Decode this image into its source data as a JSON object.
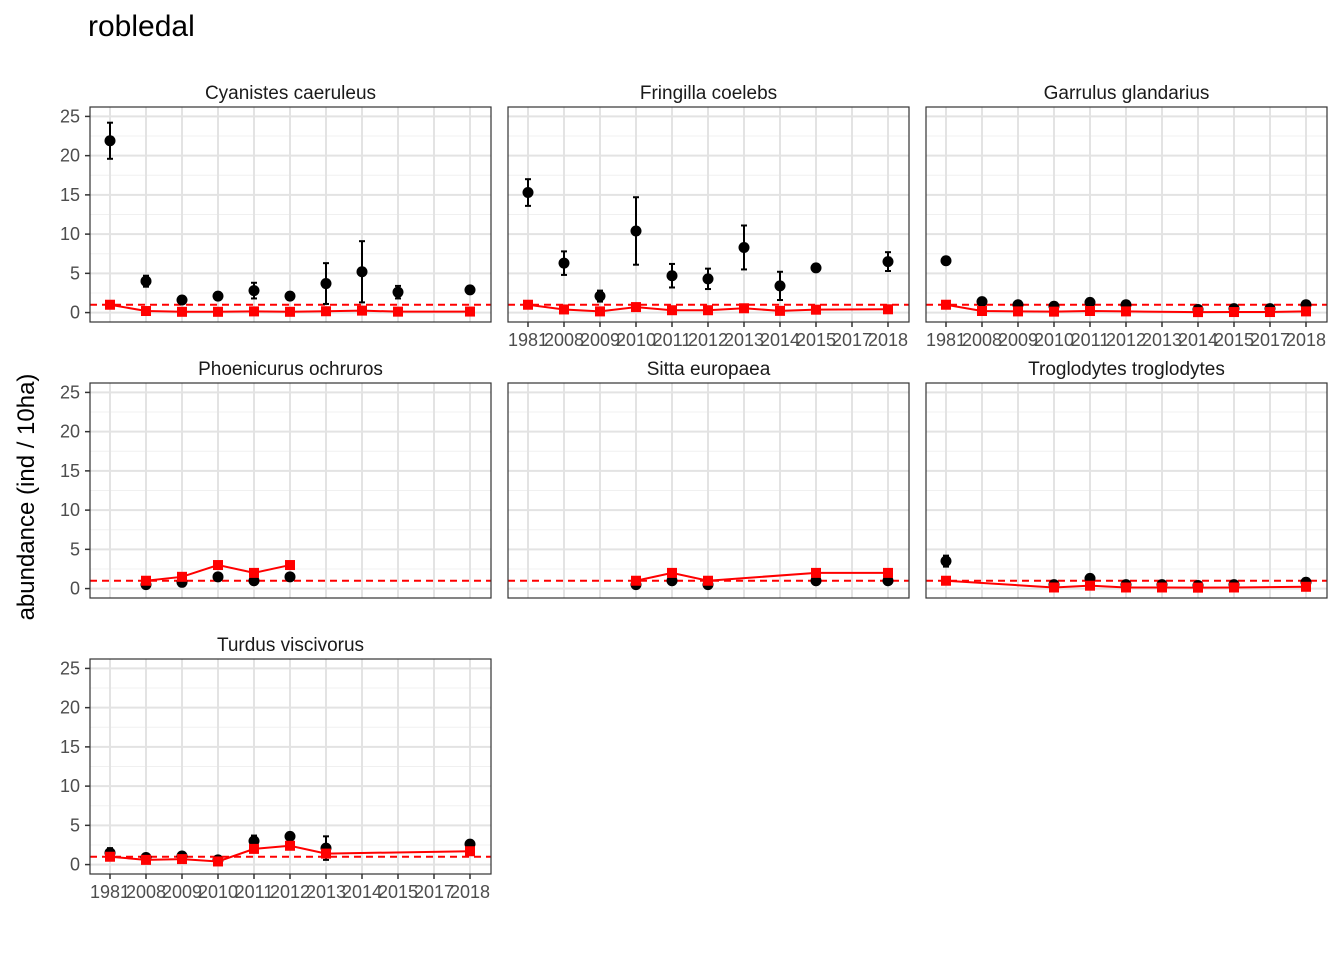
{
  "chart_data": {
    "type": "scatter",
    "title": "robledal",
    "ylabel": "abundance (ind / 10ha)",
    "xlabel": "",
    "ylim": [
      -1.2,
      26.2
    ],
    "yticks": [
      0,
      5,
      10,
      15,
      20,
      25
    ],
    "x_categories": [
      "1981",
      "2008",
      "2009",
      "2010",
      "2011",
      "2012",
      "2013",
      "2014",
      "2015",
      "2017",
      "2018"
    ],
    "reference_line": 1,
    "grid": true,
    "series_styles": {
      "observed": {
        "color": "#000000",
        "marker": "circle",
        "error_bars": true
      },
      "relative": {
        "color": "#ff0000",
        "marker": "square",
        "line": true
      },
      "reference": {
        "color": "#ff0000",
        "dash": "dashed"
      }
    },
    "panels": [
      {
        "name": "Cyanistes caeruleus",
        "observed": [
          {
            "x": "1981",
            "y": 21.9,
            "lo": 19.6,
            "hi": 24.2
          },
          {
            "x": "2008",
            "y": 4.0,
            "lo": 3.3,
            "hi": 4.7
          },
          {
            "x": "2009",
            "y": 1.6
          },
          {
            "x": "2010",
            "y": 2.1
          },
          {
            "x": "2011",
            "y": 2.8,
            "lo": 1.8,
            "hi": 3.8
          },
          {
            "x": "2012",
            "y": 2.1
          },
          {
            "x": "2013",
            "y": 3.7,
            "lo": 1.1,
            "hi": 6.3
          },
          {
            "x": "2014",
            "y": 5.2,
            "lo": 1.3,
            "hi": 9.1
          },
          {
            "x": "2015",
            "y": 2.6,
            "lo": 1.8,
            "hi": 3.4
          },
          {
            "x": "2018",
            "y": 2.9
          }
        ],
        "relative": [
          {
            "x": "1981",
            "y": 1.0
          },
          {
            "x": "2008",
            "y": 0.2
          },
          {
            "x": "2009",
            "y": 0.1
          },
          {
            "x": "2010",
            "y": 0.1
          },
          {
            "x": "2011",
            "y": 0.15
          },
          {
            "x": "2012",
            "y": 0.1
          },
          {
            "x": "2013",
            "y": 0.17
          },
          {
            "x": "2014",
            "y": 0.25
          },
          {
            "x": "2015",
            "y": 0.12
          },
          {
            "x": "2018",
            "y": 0.13
          }
        ]
      },
      {
        "name": "Fringilla coelebs",
        "observed": [
          {
            "x": "1981",
            "y": 15.3,
            "lo": 13.6,
            "hi": 17.0
          },
          {
            "x": "2008",
            "y": 6.3,
            "lo": 4.8,
            "hi": 7.8
          },
          {
            "x": "2009",
            "y": 2.1,
            "lo": 1.4,
            "hi": 2.8
          },
          {
            "x": "2010",
            "y": 10.4,
            "lo": 6.1,
            "hi": 14.7
          },
          {
            "x": "2011",
            "y": 4.7,
            "lo": 3.2,
            "hi": 6.2
          },
          {
            "x": "2012",
            "y": 4.3,
            "lo": 3.0,
            "hi": 5.6
          },
          {
            "x": "2013",
            "y": 8.3,
            "lo": 5.5,
            "hi": 11.1
          },
          {
            "x": "2014",
            "y": 3.4,
            "lo": 1.6,
            "hi": 5.2
          },
          {
            "x": "2015",
            "y": 5.7
          },
          {
            "x": "2018",
            "y": 6.5,
            "lo": 5.3,
            "hi": 7.7
          }
        ],
        "relative": [
          {
            "x": "1981",
            "y": 1.0
          },
          {
            "x": "2008",
            "y": 0.4
          },
          {
            "x": "2009",
            "y": 0.15
          },
          {
            "x": "2010",
            "y": 0.7
          },
          {
            "x": "2011",
            "y": 0.3
          },
          {
            "x": "2012",
            "y": 0.3
          },
          {
            "x": "2013",
            "y": 0.55
          },
          {
            "x": "2014",
            "y": 0.22
          },
          {
            "x": "2015",
            "y": 0.37
          },
          {
            "x": "2018",
            "y": 0.42
          }
        ]
      },
      {
        "name": "Garrulus glandarius",
        "observed": [
          {
            "x": "1981",
            "y": 6.6
          },
          {
            "x": "2008",
            "y": 1.4
          },
          {
            "x": "2009",
            "y": 1.0
          },
          {
            "x": "2010",
            "y": 0.8
          },
          {
            "x": "2011",
            "y": 1.3
          },
          {
            "x": "2012",
            "y": 1.0
          },
          {
            "x": "2014",
            "y": 0.4
          },
          {
            "x": "2015",
            "y": 0.5
          },
          {
            "x": "2017",
            "y": 0.5
          },
          {
            "x": "2018",
            "y": 1.0
          }
        ],
        "relative": [
          {
            "x": "1981",
            "y": 1.0
          },
          {
            "x": "2008",
            "y": 0.2
          },
          {
            "x": "2009",
            "y": 0.15
          },
          {
            "x": "2010",
            "y": 0.12
          },
          {
            "x": "2011",
            "y": 0.2
          },
          {
            "x": "2012",
            "y": 0.15
          },
          {
            "x": "2014",
            "y": 0.06
          },
          {
            "x": "2015",
            "y": 0.07
          },
          {
            "x": "2017",
            "y": 0.07
          },
          {
            "x": "2018",
            "y": 0.15
          }
        ]
      },
      {
        "name": "Phoenicurus ochruros",
        "observed": [
          {
            "x": "2008",
            "y": 0.5
          },
          {
            "x": "2009",
            "y": 0.8
          },
          {
            "x": "2010",
            "y": 1.5
          },
          {
            "x": "2011",
            "y": 1.0
          },
          {
            "x": "2012",
            "y": 1.5
          }
        ],
        "relative": [
          {
            "x": "2008",
            "y": 1.0
          },
          {
            "x": "2009",
            "y": 1.5
          },
          {
            "x": "2010",
            "y": 3.0
          },
          {
            "x": "2011",
            "y": 2.0
          },
          {
            "x": "2012",
            "y": 3.0
          }
        ]
      },
      {
        "name": "Sitta europaea",
        "observed": [
          {
            "x": "2010",
            "y": 0.5
          },
          {
            "x": "2011",
            "y": 1.0
          },
          {
            "x": "2012",
            "y": 0.5
          },
          {
            "x": "2015",
            "y": 1.0
          },
          {
            "x": "2018",
            "y": 1.0
          }
        ],
        "relative": [
          {
            "x": "2010",
            "y": 1.0
          },
          {
            "x": "2011",
            "y": 2.0
          },
          {
            "x": "2012",
            "y": 1.0
          },
          {
            "x": "2015",
            "y": 2.0
          },
          {
            "x": "2018",
            "y": 2.0
          }
        ]
      },
      {
        "name": "Troglodytes troglodytes",
        "observed": [
          {
            "x": "1981",
            "y": 3.5,
            "lo": 2.8,
            "hi": 4.2
          },
          {
            "x": "2010",
            "y": 0.5
          },
          {
            "x": "2011",
            "y": 1.3
          },
          {
            "x": "2012",
            "y": 0.5
          },
          {
            "x": "2013",
            "y": 0.5
          },
          {
            "x": "2014",
            "y": 0.4
          },
          {
            "x": "2015",
            "y": 0.5
          },
          {
            "x": "2018",
            "y": 0.8
          }
        ],
        "relative": [
          {
            "x": "1981",
            "y": 1.0
          },
          {
            "x": "2010",
            "y": 0.14
          },
          {
            "x": "2011",
            "y": 0.37
          },
          {
            "x": "2012",
            "y": 0.14
          },
          {
            "x": "2013",
            "y": 0.14
          },
          {
            "x": "2014",
            "y": 0.12
          },
          {
            "x": "2015",
            "y": 0.14
          },
          {
            "x": "2018",
            "y": 0.23
          }
        ]
      },
      {
        "name": "Turdus viscivorus",
        "observed": [
          {
            "x": "1981",
            "y": 1.5,
            "lo": 0.9,
            "hi": 2.1
          },
          {
            "x": "2008",
            "y": 0.9
          },
          {
            "x": "2009",
            "y": 1.1
          },
          {
            "x": "2010",
            "y": 0.6
          },
          {
            "x": "2011",
            "y": 3.0,
            "lo": 2.3,
            "hi": 3.7
          },
          {
            "x": "2012",
            "y": 3.6
          },
          {
            "x": "2013",
            "y": 2.1,
            "lo": 0.6,
            "hi": 3.6
          },
          {
            "x": "2018",
            "y": 2.6
          }
        ],
        "relative": [
          {
            "x": "1981",
            "y": 1.0
          },
          {
            "x": "2008",
            "y": 0.6
          },
          {
            "x": "2009",
            "y": 0.7
          },
          {
            "x": "2010",
            "y": 0.4
          },
          {
            "x": "2011",
            "y": 2.0
          },
          {
            "x": "2012",
            "y": 2.4
          },
          {
            "x": "2013",
            "y": 1.4
          },
          {
            "x": "2018",
            "y": 1.7
          }
        ]
      }
    ]
  }
}
